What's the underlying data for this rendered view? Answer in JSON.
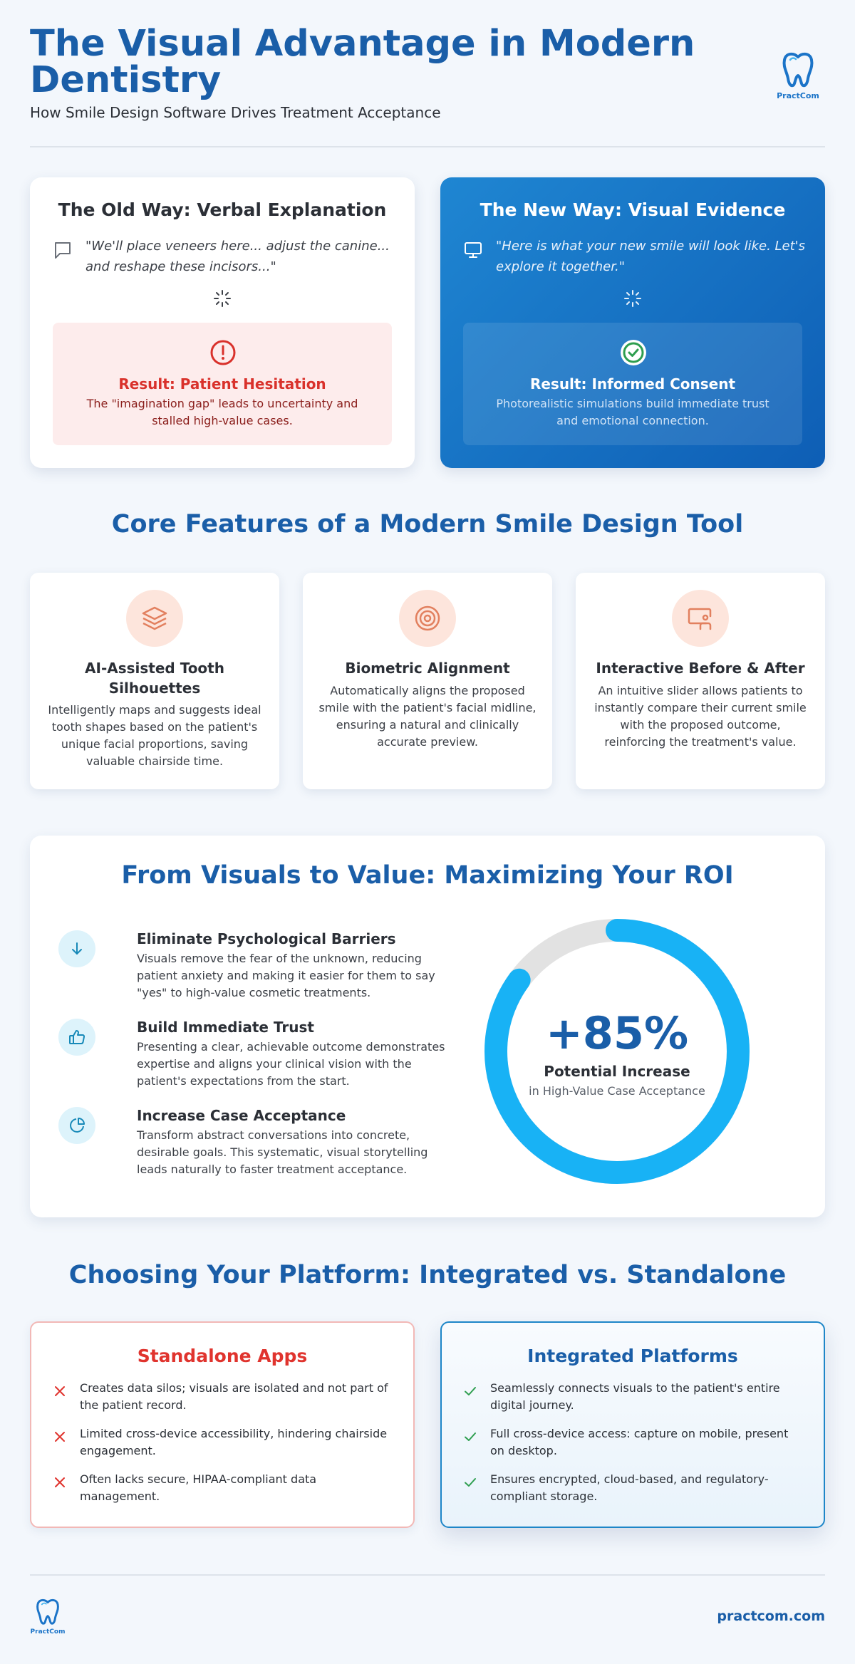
{
  "header": {
    "title": "The Visual Advantage in Modern Dentistry",
    "subtitle": "How Smile Design Software Drives Treatment Acceptance",
    "logo_text": "PractCom",
    "logo_icon": "tooth-icon"
  },
  "comparison": {
    "old": {
      "title": "The Old Way: Verbal Explanation",
      "icon": "speech-bubble-icon",
      "quote": "\"We'll place veneers here... adjust the canine... and reshape these incisors...\"",
      "result_icon": "alert-circle-icon",
      "result_title": "Result: Patient Hesitation",
      "result_desc": "The \"imagination gap\" leads to uncertainty and stalled high-value cases."
    },
    "new": {
      "title": "The New Way: Visual Evidence",
      "icon": "monitor-icon",
      "quote": "\"Here is what your new smile will look like. Let's explore it together.\"",
      "result_icon": "check-circle-icon",
      "result_title": "Result: Informed Consent",
      "result_desc": "Photorealistic simulations build immediate trust and emotional connection."
    }
  },
  "features": {
    "heading": "Core Features of a Modern Smile Design Tool",
    "items": [
      {
        "icon": "layers-icon",
        "title": "AI-Assisted Tooth Silhouettes",
        "desc": "Intelligently maps and suggests ideal tooth shapes based on the patient's unique facial proportions, saving valuable chairside time."
      },
      {
        "icon": "target-icon",
        "title": "Biometric Alignment",
        "desc": "Automatically aligns the proposed smile with the patient's facial midline, ensuring a natural and clinically accurate preview."
      },
      {
        "icon": "presentation-icon",
        "title": "Interactive Before & After",
        "desc": "An intuitive slider allows patients to instantly compare their current smile with the proposed outcome, reinforcing the treatment's value."
      }
    ]
  },
  "roi": {
    "heading": "From Visuals to Value: Maximizing Your ROI",
    "benefits": [
      {
        "icon": "arrow-down-icon",
        "title": "Eliminate Psychological Barriers",
        "desc": "Visuals remove the fear of the unknown, reducing patient anxiety and making it easier for them to say \"yes\" to high-value cosmetic treatments."
      },
      {
        "icon": "thumbs-up-icon",
        "title": "Build Immediate Trust",
        "desc": "Presenting a clear, achievable outcome demonstrates expertise and aligns your clinical vision with the patient's expectations from the start."
      },
      {
        "icon": "pie-chart-icon",
        "title": "Increase Case Acceptance",
        "desc": "Transform abstract conversations into concrete, desirable goals. This systematic, visual storytelling leads naturally to faster treatment acceptance."
      }
    ],
    "stat": {
      "value": "+85%",
      "label": "Potential Increase",
      "sublabel": "in High-Value Case Acceptance",
      "percent": 85,
      "fill_color": "#18b2f5",
      "track_color": "#e2e2e2"
    }
  },
  "platforms": {
    "heading": "Choosing Your Platform: Integrated vs. Standalone",
    "standalone": {
      "title": "Standalone Apps",
      "mark_icon": "x-icon",
      "items": [
        "Creates data silos; visuals are isolated and not part of the patient record.",
        "Limited cross-device accessibility, hindering chairside engagement.",
        "Often lacks secure, HIPAA-compliant data management."
      ]
    },
    "integrated": {
      "title": "Integrated Platforms",
      "mark_icon": "check-icon",
      "items": [
        "Seamlessly connects visuals to the patient's entire digital journey.",
        "Full cross-device access: capture on mobile, present on desktop.",
        "Ensures encrypted, cloud-based, and regulatory-compliant storage."
      ]
    }
  },
  "footer": {
    "logo_text": "PractCom",
    "site": "practcom.com"
  },
  "colors": {
    "brand_blue": "#1a5ea8",
    "accent_cyan": "#18b2f5",
    "negative_red": "#e0342e",
    "positive_green": "#2e9e4f"
  }
}
